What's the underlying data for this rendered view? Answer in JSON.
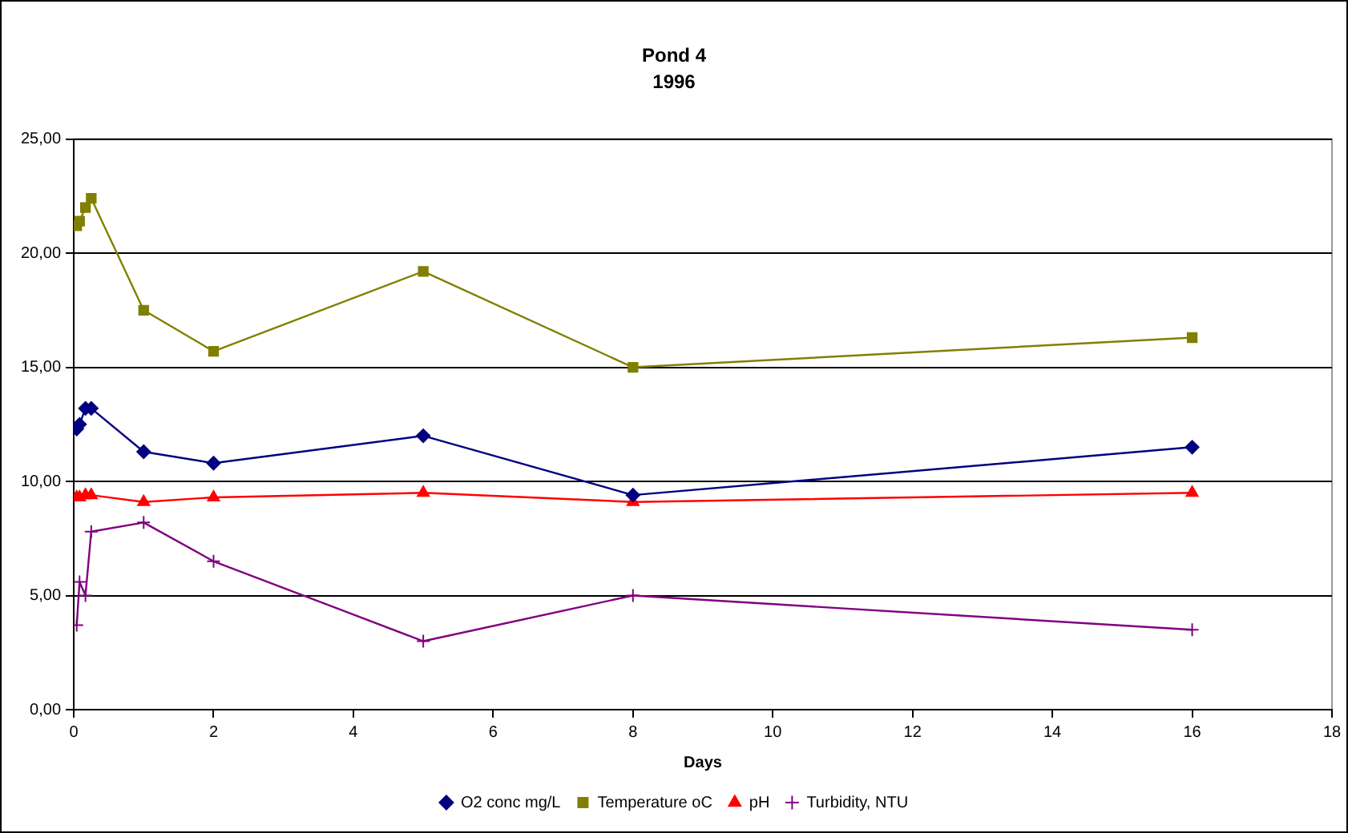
{
  "chart_data": {
    "type": "line",
    "title": "Pond 4",
    "subtitle": "1996",
    "xlabel": "Days",
    "x": [
      0.042,
      0.083,
      0.167,
      0.25,
      1,
      2,
      5,
      8,
      16
    ],
    "series": [
      {
        "name": "O2 conc mg/L",
        "color": "#000080",
        "marker": "diamond",
        "values": [
          12.3,
          12.5,
          13.2,
          13.2,
          11.3,
          10.8,
          12.0,
          9.4,
          11.5
        ]
      },
      {
        "name": "Temperature oC",
        "color": "#808000",
        "marker": "square",
        "values": [
          21.2,
          21.4,
          22.0,
          22.4,
          17.5,
          15.7,
          19.2,
          15.0,
          16.3
        ]
      },
      {
        "name": "pH",
        "color": "#ff0000",
        "marker": "triangle",
        "values": [
          9.3,
          9.3,
          9.4,
          9.4,
          9.1,
          9.3,
          9.5,
          9.1,
          9.5
        ]
      },
      {
        "name": "Turbidity, NTU",
        "color": "#800080",
        "marker": "cross",
        "values": [
          3.7,
          5.6,
          5.0,
          7.8,
          8.2,
          6.5,
          3.0,
          5.0,
          3.5
        ]
      }
    ],
    "xlim": [
      0,
      18
    ],
    "xticks": [
      0,
      2,
      4,
      6,
      8,
      10,
      12,
      14,
      16,
      18
    ],
    "ylim": [
      0,
      25
    ],
    "yticks": [
      {
        "value": 0,
        "label": "0,00"
      },
      {
        "value": 5,
        "label": "5,00"
      },
      {
        "value": 10,
        "label": "10,00"
      },
      {
        "value": 15,
        "label": "15,00"
      },
      {
        "value": 20,
        "label": "20,00"
      },
      {
        "value": 25,
        "label": "25,00"
      }
    ],
    "grid": "y",
    "legend": "bottom"
  }
}
